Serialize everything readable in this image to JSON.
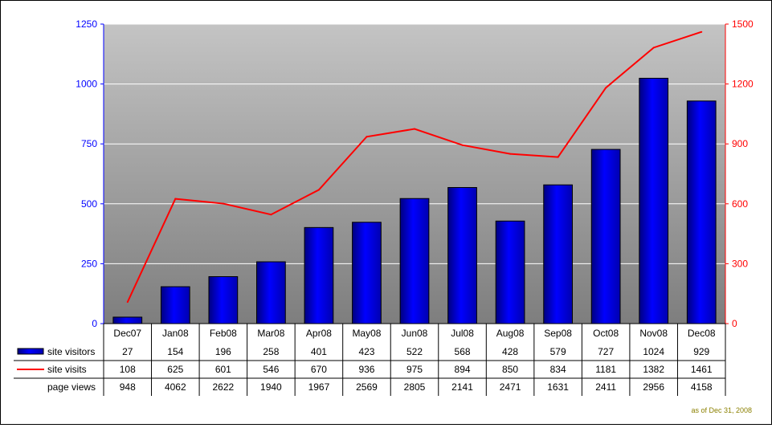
{
  "chart_data": {
    "type": "bar",
    "categories": [
      "Dec07",
      "Jan08",
      "Feb08",
      "Mar08",
      "Apr08",
      "May08",
      "Jun08",
      "Jul08",
      "Aug08",
      "Sep08",
      "Oct08",
      "Nov08",
      "Dec08"
    ],
    "series": [
      {
        "name": "site visitors",
        "type": "bar",
        "axis": "left",
        "color": "#0000ff",
        "values": [
          27,
          154,
          196,
          258,
          401,
          423,
          522,
          568,
          428,
          579,
          727,
          1024,
          929
        ]
      },
      {
        "name": "site visits",
        "type": "line",
        "axis": "right",
        "color": "#ff0000",
        "values": [
          108,
          625,
          601,
          546,
          670,
          936,
          975,
          894,
          850,
          834,
          1181,
          1382,
          1461
        ]
      }
    ],
    "table_rows": [
      {
        "name": "site visitors",
        "legend": "bar",
        "values": [
          "27",
          "154",
          "196",
          "258",
          "401",
          "423",
          "522",
          "568",
          "428",
          "579",
          "727",
          "1024",
          "929"
        ]
      },
      {
        "name": "site visits",
        "legend": "line",
        "values": [
          "108",
          "625",
          "601",
          "546",
          "670",
          "936",
          "975",
          "894",
          "850",
          "834",
          "1181",
          "1382",
          "1461"
        ]
      },
      {
        "name": "page views",
        "legend": "none",
        "values": [
          "948",
          "4062",
          "2622",
          "1940",
          "1967",
          "2569",
          "2805",
          "2141",
          "2471",
          "1631",
          "2411",
          "2956",
          "4158"
        ]
      }
    ],
    "y_left": {
      "ylim": [
        0,
        1250
      ],
      "ticks": [
        "0",
        "250",
        "500",
        "750",
        "1000",
        "1250"
      ],
      "color": "#0000ff"
    },
    "y_right": {
      "ylim": [
        0,
        1500
      ],
      "ticks": [
        "0",
        "300",
        "600",
        "900",
        "1200",
        "1500"
      ],
      "color": "#ff0000"
    },
    "grid": true,
    "legend": "data-table"
  },
  "footnote": "as of Dec 31, 2008"
}
